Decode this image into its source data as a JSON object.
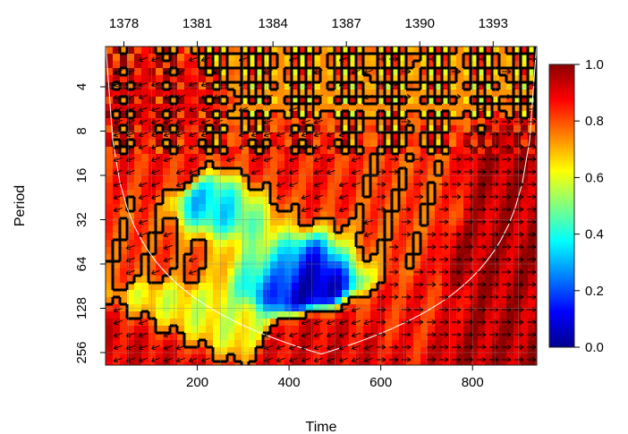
{
  "chart_data": {
    "type": "heatmap",
    "xlabel": "Time",
    "ylabel": "Period",
    "x_ticks": [
      200,
      400,
      600,
      800
    ],
    "x_range": [
      0,
      940
    ],
    "top_axis_ticks": [
      "1378",
      "1381",
      "1384",
      "1387",
      "1390",
      "1393"
    ],
    "top_axis_positions": [
      40,
      200,
      365,
      525,
      685,
      845
    ],
    "y_ticks": [
      4,
      8,
      16,
      32,
      64,
      128,
      256
    ],
    "y_scale": "log2",
    "y_range": [
      2,
      300
    ],
    "colorbar": {
      "min": 0.0,
      "max": 1.0,
      "tick_labels": [
        "0.0",
        "0.2",
        "0.4",
        "0.6",
        "0.8",
        "1.0"
      ],
      "tick_values": [
        0.0,
        0.2,
        0.4,
        0.6,
        0.8,
        1.0
      ],
      "palette": [
        "#00008b",
        "#0000ff",
        "#0080ff",
        "#00ffff",
        "#80ff80",
        "#ffff00",
        "#ff8000",
        "#ff0000",
        "#8b0000"
      ]
    },
    "significance_contour_color": "#000000",
    "cone_of_influence_color": "#ffffff",
    "grid": true,
    "features": [
      {
        "x": 900,
        "period": 16,
        "value": 0.95
      },
      {
        "x": 880,
        "period": 64,
        "value": 0.95
      },
      {
        "x": 850,
        "period": 200,
        "value": 0.95
      },
      {
        "x": 500,
        "period": 256,
        "value": 0.9
      },
      {
        "x": 450,
        "period": 64,
        "value": 0.0
      },
      {
        "x": 350,
        "period": 64,
        "value": 0.05
      },
      {
        "x": 300,
        "period": 32,
        "value": 0.3
      },
      {
        "x": 60,
        "period": 5,
        "value": 0.9
      },
      {
        "x": 60,
        "period": 12,
        "value": 0.85
      },
      {
        "x": 30,
        "period": 40,
        "value": 0.8
      },
      {
        "x": 200,
        "period": 140,
        "value": 0.6
      },
      {
        "x": 650,
        "period": 140,
        "value": 0.85
      },
      {
        "x": 100,
        "period": 250,
        "value": 0.9
      },
      {
        "x": 570,
        "period": 48,
        "value": 0.8
      },
      {
        "x": 340,
        "period": 55,
        "value": 0.85
      },
      {
        "x": 230,
        "period": 60,
        "value": 0.8
      },
      {
        "x": 420,
        "period": 16,
        "value": 0.85
      },
      {
        "x": 650,
        "period": 16,
        "value": 0.8
      },
      {
        "x": 390,
        "period": 28,
        "value": 0.85
      }
    ]
  }
}
